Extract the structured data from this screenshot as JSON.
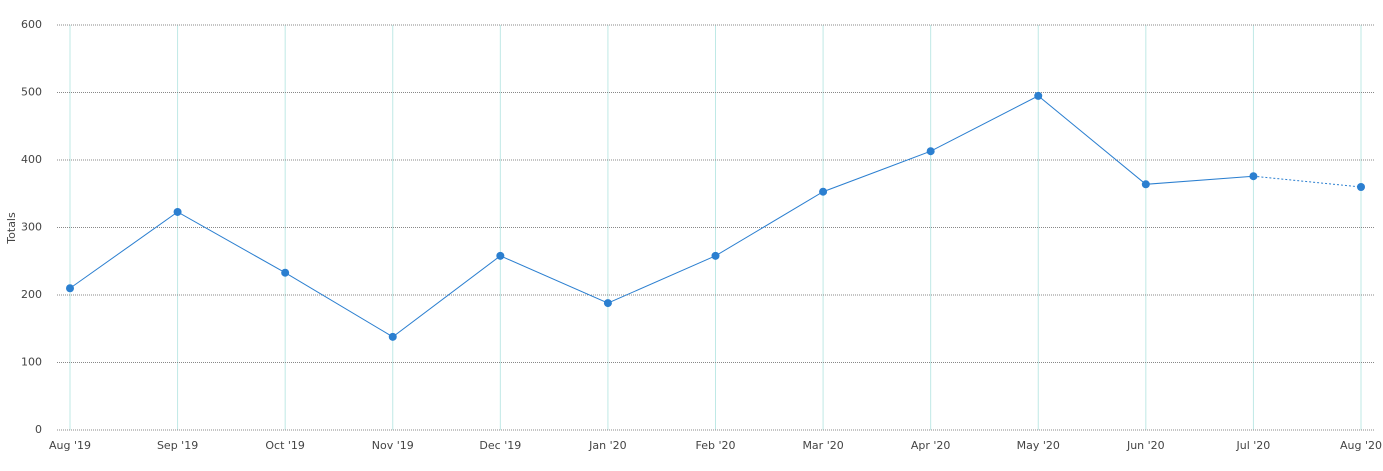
{
  "chart_data": {
    "type": "line",
    "y_label": "Totals",
    "categories": [
      "Aug '19",
      "Sep '19",
      "Oct '19",
      "Nov '19",
      "Dec '19",
      "Jan '20",
      "Feb '20",
      "Mar '20",
      "Apr '20",
      "May '20",
      "Jun '20",
      "Jul '20",
      "Aug '20"
    ],
    "series": [
      {
        "name": "Totals",
        "color": "#2b7fd0",
        "values": [
          210,
          323,
          233,
          138,
          258,
          188,
          258,
          353,
          413,
          495,
          364,
          376,
          360
        ]
      }
    ],
    "last_segment_style": "dotted",
    "ylim": [
      0,
      600
    ],
    "yticks": [
      0,
      100,
      200,
      300,
      400,
      500,
      600
    ],
    "grid": true
  }
}
